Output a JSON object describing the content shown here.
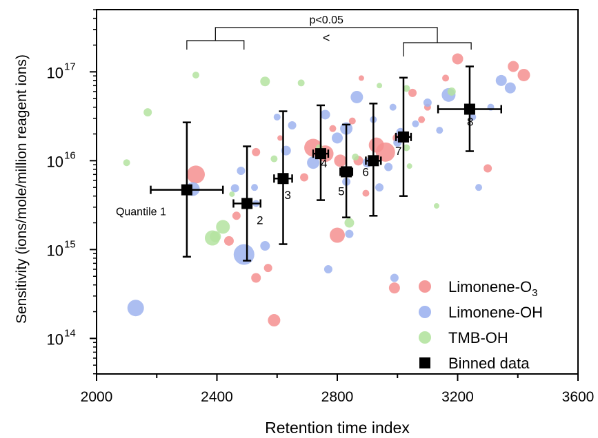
{
  "chart_data": {
    "type": "scatter",
    "xlabel": "Retention time index",
    "ylabel": "Sensitivity (ions/mole/million reagent ions)",
    "xlim": [
      2000,
      3600
    ],
    "ylim_log10": [
      13.6,
      17.7
    ],
    "yscale": "log",
    "x_ticks": [
      2000,
      2400,
      2800,
      3200,
      3600
    ],
    "x_tick_labels": [
      "2000",
      "2400",
      "2800",
      "3200",
      "3600"
    ],
    "y_ticks": [
      {
        "base": "10",
        "exp": "14",
        "value": 100000000000000.0
      },
      {
        "base": "10",
        "exp": "15",
        "value": 1000000000000000.0
      },
      {
        "base": "10",
        "exp": "16",
        "value": 1e+16
      },
      {
        "base": "10",
        "exp": "17",
        "value": 1e+17
      }
    ],
    "legend": {
      "position": "bottom-right",
      "entries": [
        {
          "label_main": "Limonene-O",
          "label_sub": "3",
          "color": "#f48f8f",
          "marker": "circle"
        },
        {
          "label_main": "Limonene-OH",
          "label_sub": "",
          "color": "#9db3ef",
          "marker": "circle"
        },
        {
          "label_main": "TMB-OH",
          "label_sub": "",
          "color": "#b4e3a0",
          "marker": "circle"
        },
        {
          "label_main": "Binned data",
          "label_sub": "",
          "color": "#000000",
          "marker": "square"
        }
      ]
    },
    "series": [
      {
        "name": "Limonene-O3",
        "color": "#f48f8f",
        "points": [
          {
            "x": 2330,
            "y": 7000000000000000.0,
            "r": 13
          },
          {
            "x": 2465,
            "y": 2400000000000000.0,
            "r": 6
          },
          {
            "x": 2440,
            "y": 1250000000000000.0,
            "r": 7
          },
          {
            "x": 2530,
            "y": 1.25e+16,
            "r": 6
          },
          {
            "x": 2530,
            "y": 480000000000000.0,
            "r": 7
          },
          {
            "x": 2570,
            "y": 620000000000000.0,
            "r": 6
          },
          {
            "x": 2590,
            "y": 160000000000000.0,
            "r": 9
          },
          {
            "x": 2610,
            "y": 1.8e+16,
            "r": 4
          },
          {
            "x": 2690,
            "y": 6500000000000000.0,
            "r": 6
          },
          {
            "x": 2720,
            "y": 1.4e+16,
            "r": 13
          },
          {
            "x": 2760,
            "y": 1.2e+16,
            "r": 12
          },
          {
            "x": 2785,
            "y": 2.3e+16,
            "r": 5
          },
          {
            "x": 2800,
            "y": 1450000000000000.0,
            "r": 11
          },
          {
            "x": 2810,
            "y": 1e+16,
            "r": 9
          },
          {
            "x": 2850,
            "y": 2.8e+16,
            "r": 5
          },
          {
            "x": 2870,
            "y": 1e+16,
            "r": 7
          },
          {
            "x": 2880,
            "y": 8.5e+16,
            "r": 4
          },
          {
            "x": 2895,
            "y": 4300000000000000.0,
            "r": 5
          },
          {
            "x": 2930,
            "y": 1.5e+16,
            "r": 11
          },
          {
            "x": 2960,
            "y": 1.25e+16,
            "r": 14
          },
          {
            "x": 2990,
            "y": 370000000000000.0,
            "r": 8
          },
          {
            "x": 3000,
            "y": 1.8e+16,
            "r": 7
          },
          {
            "x": 3050,
            "y": 5.8e+16,
            "r": 6
          },
          {
            "x": 3080,
            "y": 2.9e+16,
            "r": 5
          },
          {
            "x": 3100,
            "y": 4e+16,
            "r": 5
          },
          {
            "x": 3160,
            "y": 8.5e+16,
            "r": 5
          },
          {
            "x": 3200,
            "y": 1.4e+17,
            "r": 8
          },
          {
            "x": 3300,
            "y": 8200000000000000.0,
            "r": 6
          },
          {
            "x": 3385,
            "y": 1.15e+17,
            "r": 8
          },
          {
            "x": 3420,
            "y": 9.2e+16,
            "r": 9
          }
        ]
      },
      {
        "name": "Limonene-OH",
        "color": "#9db3ef",
        "points": [
          {
            "x": 2130,
            "y": 220000000000000.0,
            "r": 12
          },
          {
            "x": 2320,
            "y": 4800000000000000.0,
            "r": 10
          },
          {
            "x": 2460,
            "y": 4900000000000000.0,
            "r": 6
          },
          {
            "x": 2480,
            "y": 7700000000000000.0,
            "r": 6
          },
          {
            "x": 2490,
            "y": 880000000000000.0,
            "r": 15
          },
          {
            "x": 2525,
            "y": 5000000000000000.0,
            "r": 5
          },
          {
            "x": 2530,
            "y": 3300000000000000.0,
            "r": 5
          },
          {
            "x": 2560,
            "y": 1100000000000000.0,
            "r": 7
          },
          {
            "x": 2600,
            "y": 3.1e+16,
            "r": 5
          },
          {
            "x": 2650,
            "y": 2.5e+16,
            "r": 6
          },
          {
            "x": 2630,
            "y": 1.3e+16,
            "r": 7
          },
          {
            "x": 2720,
            "y": 9500000000000000.0,
            "r": 9
          },
          {
            "x": 2760,
            "y": 3.3e+16,
            "r": 7
          },
          {
            "x": 2770,
            "y": 600000000000000.0,
            "r": 6
          },
          {
            "x": 2800,
            "y": 1.8e+16,
            "r": 8
          },
          {
            "x": 2830,
            "y": 2.3e+16,
            "r": 9
          },
          {
            "x": 2830,
            "y": 5800000000000000.0,
            "r": 6
          },
          {
            "x": 2840,
            "y": 1500000000000000.0,
            "r": 6
          },
          {
            "x": 2865,
            "y": 5.2e+16,
            "r": 9
          },
          {
            "x": 2900,
            "y": 9500000000000000.0,
            "r": 7
          },
          {
            "x": 2920,
            "y": 2.9e+16,
            "r": 5
          },
          {
            "x": 2940,
            "y": 5000000000000000.0,
            "r": 6
          },
          {
            "x": 2970,
            "y": 8500000000000000.0,
            "r": 6
          },
          {
            "x": 2985,
            "y": 4e+16,
            "r": 5
          },
          {
            "x": 2990,
            "y": 480000000000000.0,
            "r": 6
          },
          {
            "x": 3000,
            "y": 1.6e+16,
            "r": 6
          },
          {
            "x": 3010,
            "y": 2.1e+16,
            "r": 6
          },
          {
            "x": 3060,
            "y": 2.6e+16,
            "r": 5
          },
          {
            "x": 3100,
            "y": 4.5e+16,
            "r": 6
          },
          {
            "x": 3140,
            "y": 2.2e+16,
            "r": 5
          },
          {
            "x": 3170,
            "y": 5.5e+16,
            "r": 10
          },
          {
            "x": 3250,
            "y": 3.1e+16,
            "r": 5
          },
          {
            "x": 3270,
            "y": 5000000000000000.0,
            "r": 5
          },
          {
            "x": 3310,
            "y": 4e+16,
            "r": 5
          },
          {
            "x": 3345,
            "y": 8e+16,
            "r": 8
          },
          {
            "x": 3375,
            "y": 6.6e+16,
            "r": 8
          }
        ]
      },
      {
        "name": "TMB-OH",
        "color": "#b4e3a0",
        "points": [
          {
            "x": 2100,
            "y": 9500000000000000.0,
            "r": 5
          },
          {
            "x": 2170,
            "y": 3.5e+16,
            "r": 6
          },
          {
            "x": 2330,
            "y": 9.2e+16,
            "r": 5
          },
          {
            "x": 2385,
            "y": 1350000000000000.0,
            "r": 11
          },
          {
            "x": 2395,
            "y": 1400000000000000.0,
            "r": 8
          },
          {
            "x": 2420,
            "y": 1800000000000000.0,
            "r": 10
          },
          {
            "x": 2450,
            "y": 4200000000000000.0,
            "r": 4
          },
          {
            "x": 2560,
            "y": 7.8e+16,
            "r": 7
          },
          {
            "x": 2590,
            "y": 1.05e+16,
            "r": 5
          },
          {
            "x": 2680,
            "y": 7.5e+16,
            "r": 5
          },
          {
            "x": 2740,
            "y": 1.4e+16,
            "r": 5
          },
          {
            "x": 2840,
            "y": 2000000000000000.0,
            "r": 7
          },
          {
            "x": 2860,
            "y": 1.1e+16,
            "r": 5
          },
          {
            "x": 2940,
            "y": 7e+16,
            "r": 4
          },
          {
            "x": 3030,
            "y": 1.4e+16,
            "r": 5
          },
          {
            "x": 3040,
            "y": 8700000000000000.0,
            "r": 4
          },
          {
            "x": 3030,
            "y": 6.5e+16,
            "r": 5
          },
          {
            "x": 3130,
            "y": 3100000000000000.0,
            "r": 4
          },
          {
            "x": 3180,
            "y": 6e+16,
            "r": 6
          }
        ]
      },
      {
        "name": "Binned data",
        "color": "#000000",
        "points": [
          {
            "x": 2300,
            "y": 4700000000000000.0,
            "xerr": 120,
            "ylo": 830000000000000.0,
            "yhi": 2.7e+16,
            "label": "Quantile 1"
          },
          {
            "x": 2500,
            "y": 3300000000000000.0,
            "xerr": 45,
            "ylo": 750000000000000.0,
            "yhi": 1.45e+16,
            "label": "2"
          },
          {
            "x": 2620,
            "y": 6300000000000000.0,
            "xerr": 30,
            "ylo": 1150000000000000.0,
            "yhi": 3.6e+16,
            "label": "3"
          },
          {
            "x": 2745,
            "y": 1.2e+16,
            "xerr": 25,
            "ylo": 3600000000000000.0,
            "yhi": 4.2e+16,
            "label": "4"
          },
          {
            "x": 2830,
            "y": 7500000000000000.0,
            "xerr": 20,
            "ylo": 2300000000000000.0,
            "yhi": 2.55e+16,
            "label": "5"
          },
          {
            "x": 2920,
            "y": 1e+16,
            "xerr": 25,
            "ylo": 2400000000000000.0,
            "yhi": 4.4e+16,
            "label": "6"
          },
          {
            "x": 3020,
            "y": 1.85e+16,
            "xerr": 25,
            "ylo": 4000000000000000.0,
            "yhi": 8.6e+16,
            "label": "7"
          },
          {
            "x": 3240,
            "y": 3.8e+16,
            "xerr": 105,
            "ylo": 1.28e+16,
            "yhi": 1.15e+17,
            "label": "8"
          }
        ]
      }
    ],
    "annotations": {
      "significance_label": "p<0.05",
      "comparison_symbol": "<",
      "left_group_range": [
        2300,
        2490
      ],
      "right_group_range": [
        3020,
        3245
      ]
    }
  }
}
